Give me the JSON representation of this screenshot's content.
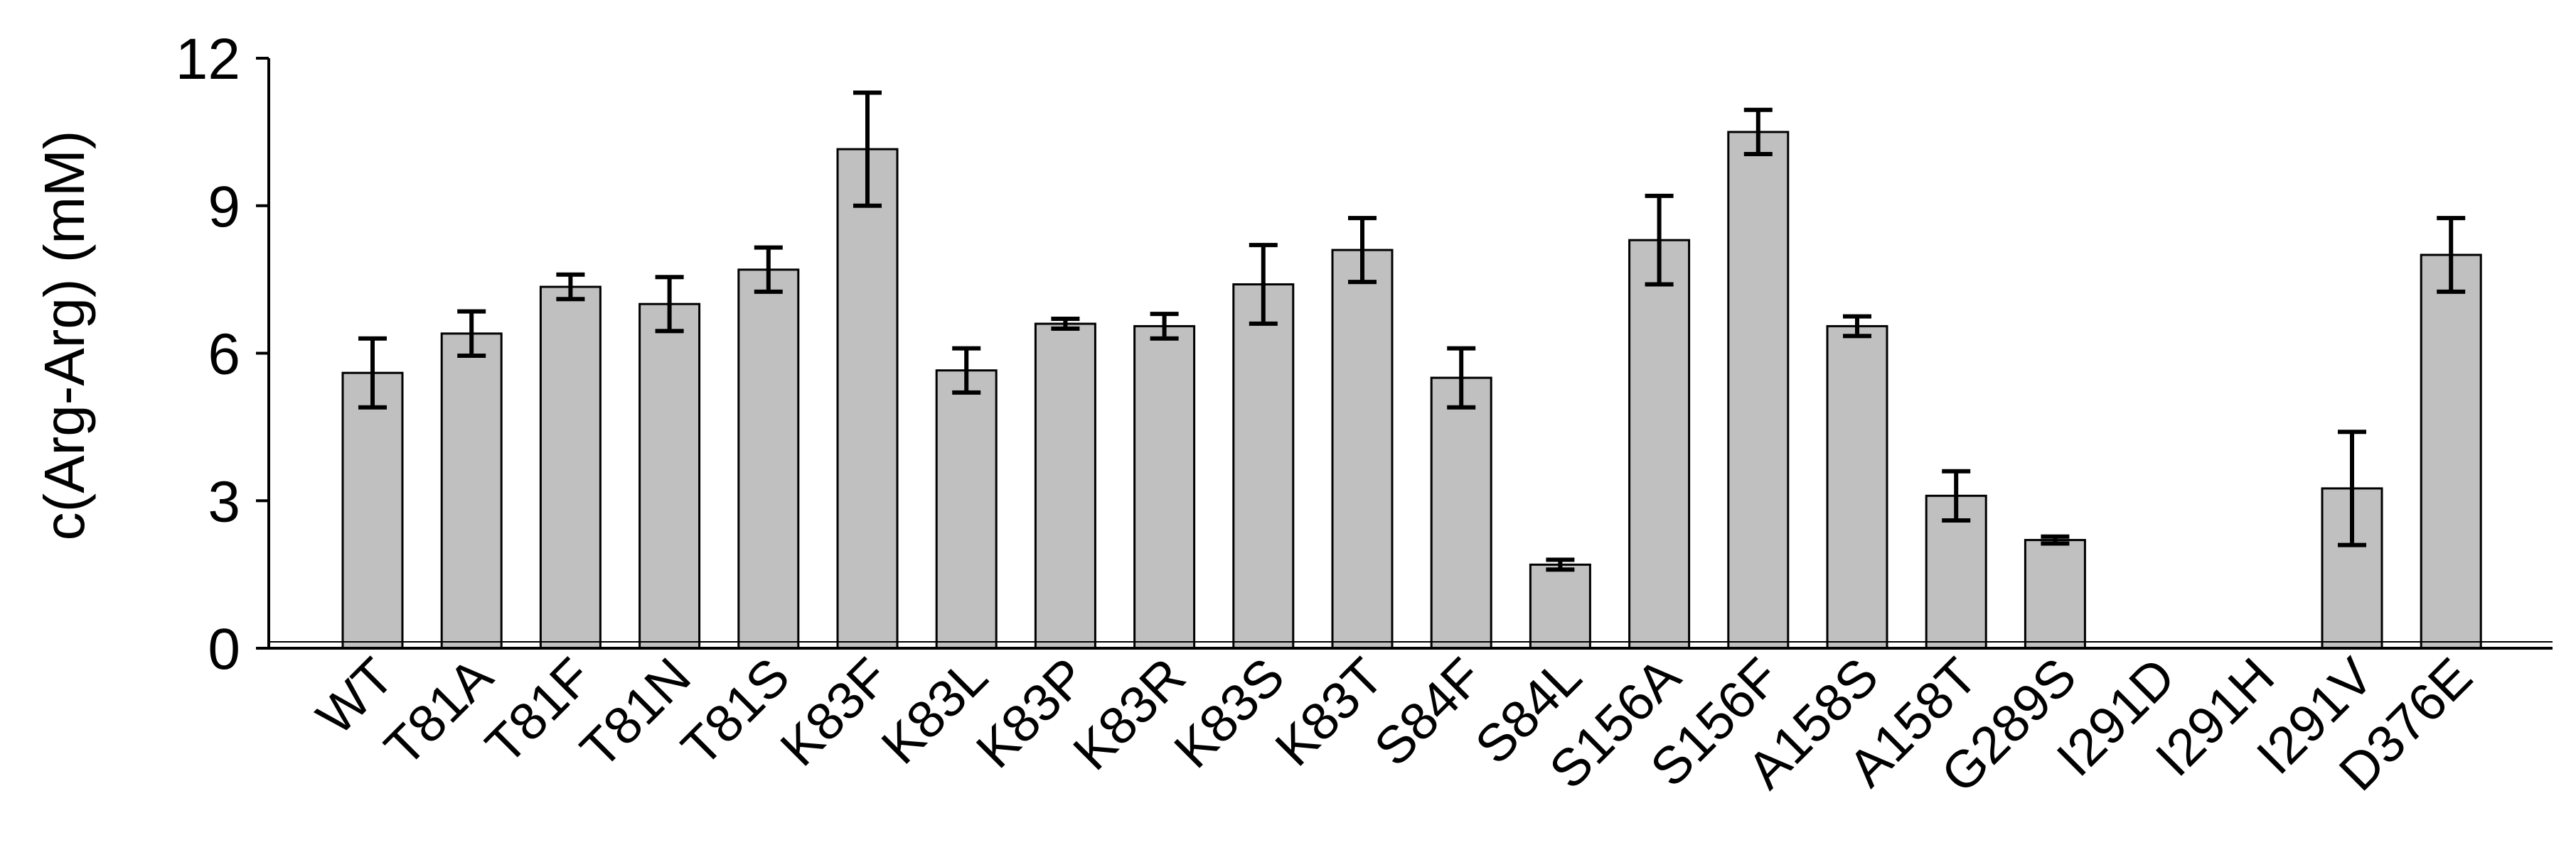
{
  "chart_data": {
    "type": "bar",
    "title": "",
    "xlabel": "",
    "ylabel": "c(Arg-Arg) (mM)",
    "ylim": [
      0,
      12
    ],
    "yticks": [
      0,
      3,
      6,
      9,
      12
    ],
    "grid": false,
    "legend": "none",
    "bar_color": "#c0c0c0",
    "edge_color": "#000000",
    "categories": [
      "WT",
      "T81A",
      "T81F",
      "T81N",
      "T81S",
      "K83F",
      "K83L",
      "K83P",
      "K83R",
      "K83S",
      "K83T",
      "S84F",
      "S84L",
      "S156A",
      "S156F",
      "A158S",
      "A158T",
      "G289S",
      "I291D",
      "I291H",
      "I291V",
      "D376E"
    ],
    "values": [
      5.6,
      6.4,
      7.35,
      7.0,
      7.7,
      10.15,
      5.65,
      6.6,
      6.55,
      7.4,
      8.1,
      5.5,
      1.7,
      8.3,
      10.5,
      6.55,
      3.1,
      2.2,
      0,
      0,
      3.25,
      8.0
    ],
    "errors": [
      0.7,
      0.45,
      0.25,
      0.55,
      0.45,
      1.15,
      0.45,
      0.1,
      0.25,
      0.8,
      0.65,
      0.6,
      0.1,
      0.9,
      0.45,
      0.2,
      0.5,
      0.07,
      0,
      0,
      1.15,
      0.75
    ]
  }
}
